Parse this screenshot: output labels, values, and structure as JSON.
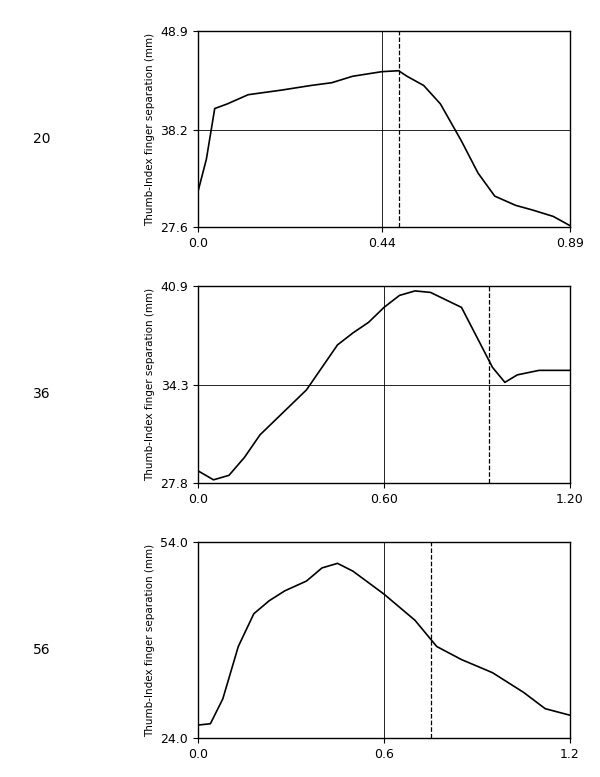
{
  "chart_data": [
    {
      "type": "line",
      "panel_label": "20",
      "y_label": "Thumb-Index finger separation (mm)",
      "color": "#000000",
      "grid": true,
      "dashed_x": 0.48,
      "x": [
        0.0,
        0.02,
        0.04,
        0.07,
        0.12,
        0.2,
        0.27,
        0.32,
        0.37,
        0.44,
        0.48,
        0.5,
        0.54,
        0.58,
        0.63,
        0.67,
        0.71,
        0.76,
        0.8,
        0.85,
        0.89
      ],
      "values": [
        31.5,
        35.0,
        40.5,
        41.0,
        42.0,
        42.5,
        43.0,
        43.3,
        44.0,
        44.5,
        44.6,
        44.0,
        43.0,
        41.0,
        37.0,
        33.5,
        31.0,
        30.0,
        29.5,
        28.8,
        27.8
      ],
      "xlim": [
        0.0,
        0.89
      ],
      "ylim": [
        27.6,
        48.9
      ],
      "xticks": [
        0.0,
        0.44,
        0.89
      ],
      "yticks": [
        27.6,
        38.2,
        48.9
      ]
    },
    {
      "type": "line",
      "panel_label": "36",
      "y_label": "Thumb-Index finger separation (mm)",
      "color": "#000000",
      "grid": true,
      "dashed_x": 0.94,
      "x": [
        0.0,
        0.05,
        0.1,
        0.15,
        0.2,
        0.25,
        0.3,
        0.35,
        0.4,
        0.45,
        0.5,
        0.55,
        0.6,
        0.65,
        0.7,
        0.75,
        0.8,
        0.85,
        0.9,
        0.95,
        0.99,
        1.03,
        1.1,
        1.2
      ],
      "values": [
        28.6,
        28.0,
        28.3,
        29.5,
        31.0,
        32.0,
        33.0,
        34.0,
        35.5,
        37.0,
        37.8,
        38.5,
        39.5,
        40.3,
        40.6,
        40.5,
        40.0,
        39.5,
        37.5,
        35.5,
        34.5,
        35.0,
        35.3,
        35.3
      ],
      "xlim": [
        0.0,
        1.2
      ],
      "ylim": [
        27.8,
        40.9
      ],
      "xticks": [
        0.0,
        {
          "value": 0.6,
          "label": "0.60"
        },
        {
          "value": 1.2,
          "label": "1.20"
        }
      ],
      "yticks": [
        27.8,
        34.3,
        40.9
      ]
    },
    {
      "type": "line",
      "panel_label": "56",
      "y_label": "Thumb-Index finger separation (mm)",
      "color": "#000000",
      "grid": true,
      "dashed_x": 0.75,
      "x": [
        0.0,
        0.04,
        0.08,
        0.13,
        0.18,
        0.23,
        0.28,
        0.35,
        0.4,
        0.45,
        0.5,
        0.6,
        0.7,
        0.77,
        0.85,
        0.95,
        1.05,
        1.12,
        1.2
      ],
      "values": [
        26.0,
        26.2,
        30.0,
        38.0,
        43.0,
        45.0,
        46.5,
        48.0,
        50.0,
        50.7,
        49.5,
        46.0,
        42.0,
        38.0,
        36.0,
        34.0,
        31.0,
        28.5,
        27.5
      ],
      "xlim": [
        0.0,
        1.2
      ],
      "ylim": [
        24.0,
        54.0
      ],
      "xticks": [
        0.0,
        0.6,
        1.2
      ],
      "yticks": [
        24.0,
        54.0
      ]
    }
  ]
}
